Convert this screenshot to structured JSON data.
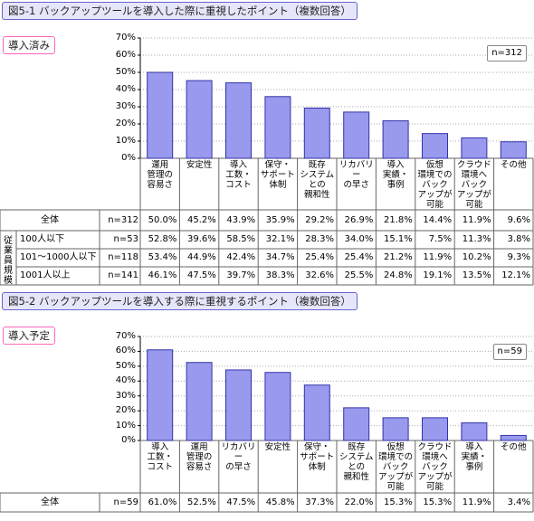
{
  "chart_data": [
    {
      "type": "bar",
      "title": "図5-1 バックアップツールを導入した際に重視したポイント（複数回答）",
      "subtitle": "導入済み",
      "n": "n=312",
      "categories": [
        "運用\n管理の\n容易さ",
        "安定性",
        "導入\n工数・\nコスト",
        "保守・\nサポート\n体制",
        "既存\nシステム\nとの\n親和性",
        "リカバリー\nの早さ",
        "導入\n実績・\n事例",
        "仮想\n環境での\nバック\nアップが\n可能",
        "クラウド\n環境へ\nバック\nアップが\n可能",
        "その他"
      ],
      "values": [
        50.0,
        45.2,
        43.9,
        35.9,
        29.2,
        26.9,
        21.8,
        14.4,
        11.9,
        9.6
      ],
      "value_labels": [
        "50.0%",
        "45.2%",
        "43.9%",
        "35.9%",
        "29.2%",
        "26.9%",
        "21.8%",
        "14.4%",
        "11.9%",
        "9.6%"
      ],
      "total_label": "全体",
      "color": "#9999ee",
      "edge": "#3333aa",
      "ylim": [
        0,
        70
      ],
      "yticks": [
        {
          "value": 0,
          "label": "0%"
        },
        {
          "value": 10,
          "label": "10%"
        },
        {
          "value": 20,
          "label": "20%"
        },
        {
          "value": 30,
          "label": "30%"
        },
        {
          "value": 40,
          "label": "40%"
        },
        {
          "value": 50,
          "label": "50%"
        },
        {
          "value": 60,
          "label": "60%"
        },
        {
          "value": 70,
          "label": "70%"
        }
      ],
      "grid": true,
      "row_group": "従業員規模",
      "rows": [
        {
          "label": "100人以下",
          "n": "n=53",
          "values": [
            "52.8%",
            "39.6%",
            "58.5%",
            "32.1%",
            "28.3%",
            "34.0%",
            "15.1%",
            "7.5%",
            "11.3%",
            "3.8%"
          ]
        },
        {
          "label": "101〜1000人以下",
          "n": "n=118",
          "values": [
            "53.4%",
            "44.9%",
            "42.4%",
            "34.7%",
            "25.4%",
            "25.4%",
            "21.2%",
            "11.9%",
            "10.2%",
            "9.3%"
          ]
        },
        {
          "label": "1001人以上",
          "n": "n=141",
          "values": [
            "46.1%",
            "47.5%",
            "39.7%",
            "38.3%",
            "32.6%",
            "25.5%",
            "24.8%",
            "19.1%",
            "13.5%",
            "12.1%"
          ]
        }
      ]
    },
    {
      "type": "bar",
      "title": "図5-2 バックアップツールを導入する際に重視するポイント（複数回答）",
      "subtitle": "導入予定",
      "n": "n=59",
      "categories": [
        "導入\n工数・\nコスト",
        "運用\n管理の\n容易さ",
        "リカバリー\nの早さ",
        "安定性",
        "保守・\nサポート\n体制",
        "既存\nシステム\nとの\n親和性",
        "仮想\n環境での\nバック\nアップが\n可能",
        "クラウド\n環境へ\nバック\nアップが\n可能",
        "導入\n実績・\n事例",
        "その他"
      ],
      "values": [
        61.0,
        52.5,
        47.5,
        45.8,
        37.3,
        22.0,
        15.3,
        15.3,
        11.9,
        3.4
      ],
      "value_labels": [
        "61.0%",
        "52.5%",
        "47.5%",
        "45.8%",
        "37.3%",
        "22.0%",
        "15.3%",
        "15.3%",
        "11.9%",
        "3.4%"
      ],
      "total_label": "全体",
      "color": "#9999ee",
      "edge": "#3333aa",
      "ylim": [
        0,
        70
      ],
      "yticks": [
        {
          "value": 0,
          "label": "0%"
        },
        {
          "value": 10,
          "label": "10%"
        },
        {
          "value": 20,
          "label": "20%"
        },
        {
          "value": 30,
          "label": "30%"
        },
        {
          "value": 40,
          "label": "40%"
        },
        {
          "value": 50,
          "label": "50%"
        },
        {
          "value": 60,
          "label": "60%"
        },
        {
          "value": 70,
          "label": "70%"
        }
      ],
      "grid": true
    }
  ]
}
